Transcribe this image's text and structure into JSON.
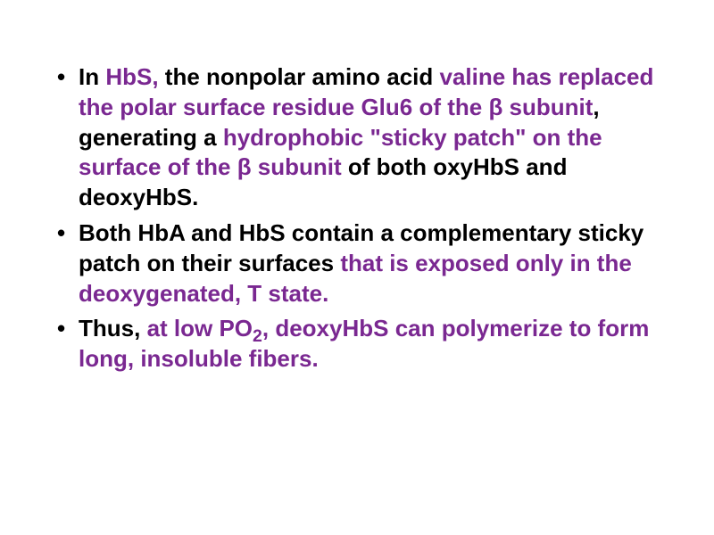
{
  "slide": {
    "background_color": "#ffffff",
    "text_color": "#000000",
    "highlight_color": "#7a2891",
    "font_family": "Arial",
    "font_size_pt": 26,
    "font_weight": "bold",
    "bullets": [
      {
        "runs": [
          {
            "t": "In ",
            "hl": false
          },
          {
            "t": "HbS, ",
            "hl": true
          },
          {
            "t": "the nonpolar amino acid ",
            "hl": false
          },
          {
            "t": "valine has replaced the polar surface residue Glu6 of the β subunit",
            "hl": true
          },
          {
            "t": ", generating a ",
            "hl": false
          },
          {
            "t": "hydrophobic \"sticky patch\" on the surface of the β subunit ",
            "hl": true
          },
          {
            "t": "of both oxyHbS and deoxyHbS.",
            "hl": false
          }
        ]
      },
      {
        "runs": [
          {
            "t": "Both HbA and HbS contain a complementary sticky patch on their surfaces ",
            "hl": false
          },
          {
            "t": "that is exposed only in the deoxygenated, T state.",
            "hl": true
          }
        ]
      },
      {
        "runs": [
          {
            "t": "Thus, ",
            "hl": false
          },
          {
            "t": "at low PO",
            "hl": true
          },
          {
            "t": "2",
            "hl": true,
            "sub": true
          },
          {
            "t": ", deoxyHbS can polymerize to form long, insoluble fibers.",
            "hl": true
          }
        ]
      }
    ]
  }
}
